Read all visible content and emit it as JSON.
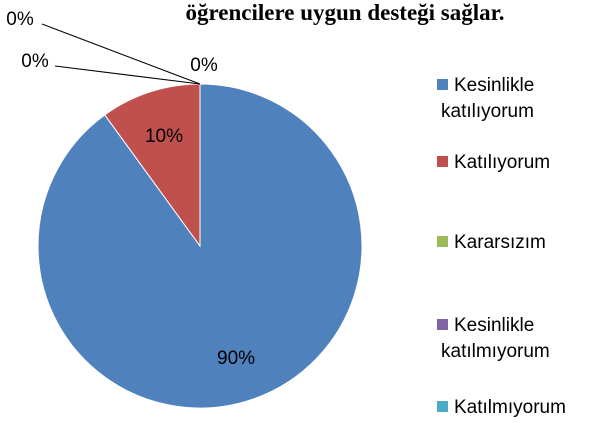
{
  "chart_data": {
    "type": "pie",
    "title": "öğrencilere uygun desteği sağlar.",
    "categories": [
      "Kesinlikle katılıyorum",
      "Katılıyorum",
      "Kararsızım",
      "Kesinlikle katılmıyorum",
      "Katılmıyorum"
    ],
    "values": [
      90,
      10,
      0,
      0,
      0
    ],
    "value_labels": [
      "90%",
      "10%",
      "0%",
      "0%",
      "0%"
    ],
    "colors": [
      "#4f81bd",
      "#c0504d",
      "#9bbb59",
      "#8064a2",
      "#4bacc6"
    ],
    "legend": "right"
  }
}
